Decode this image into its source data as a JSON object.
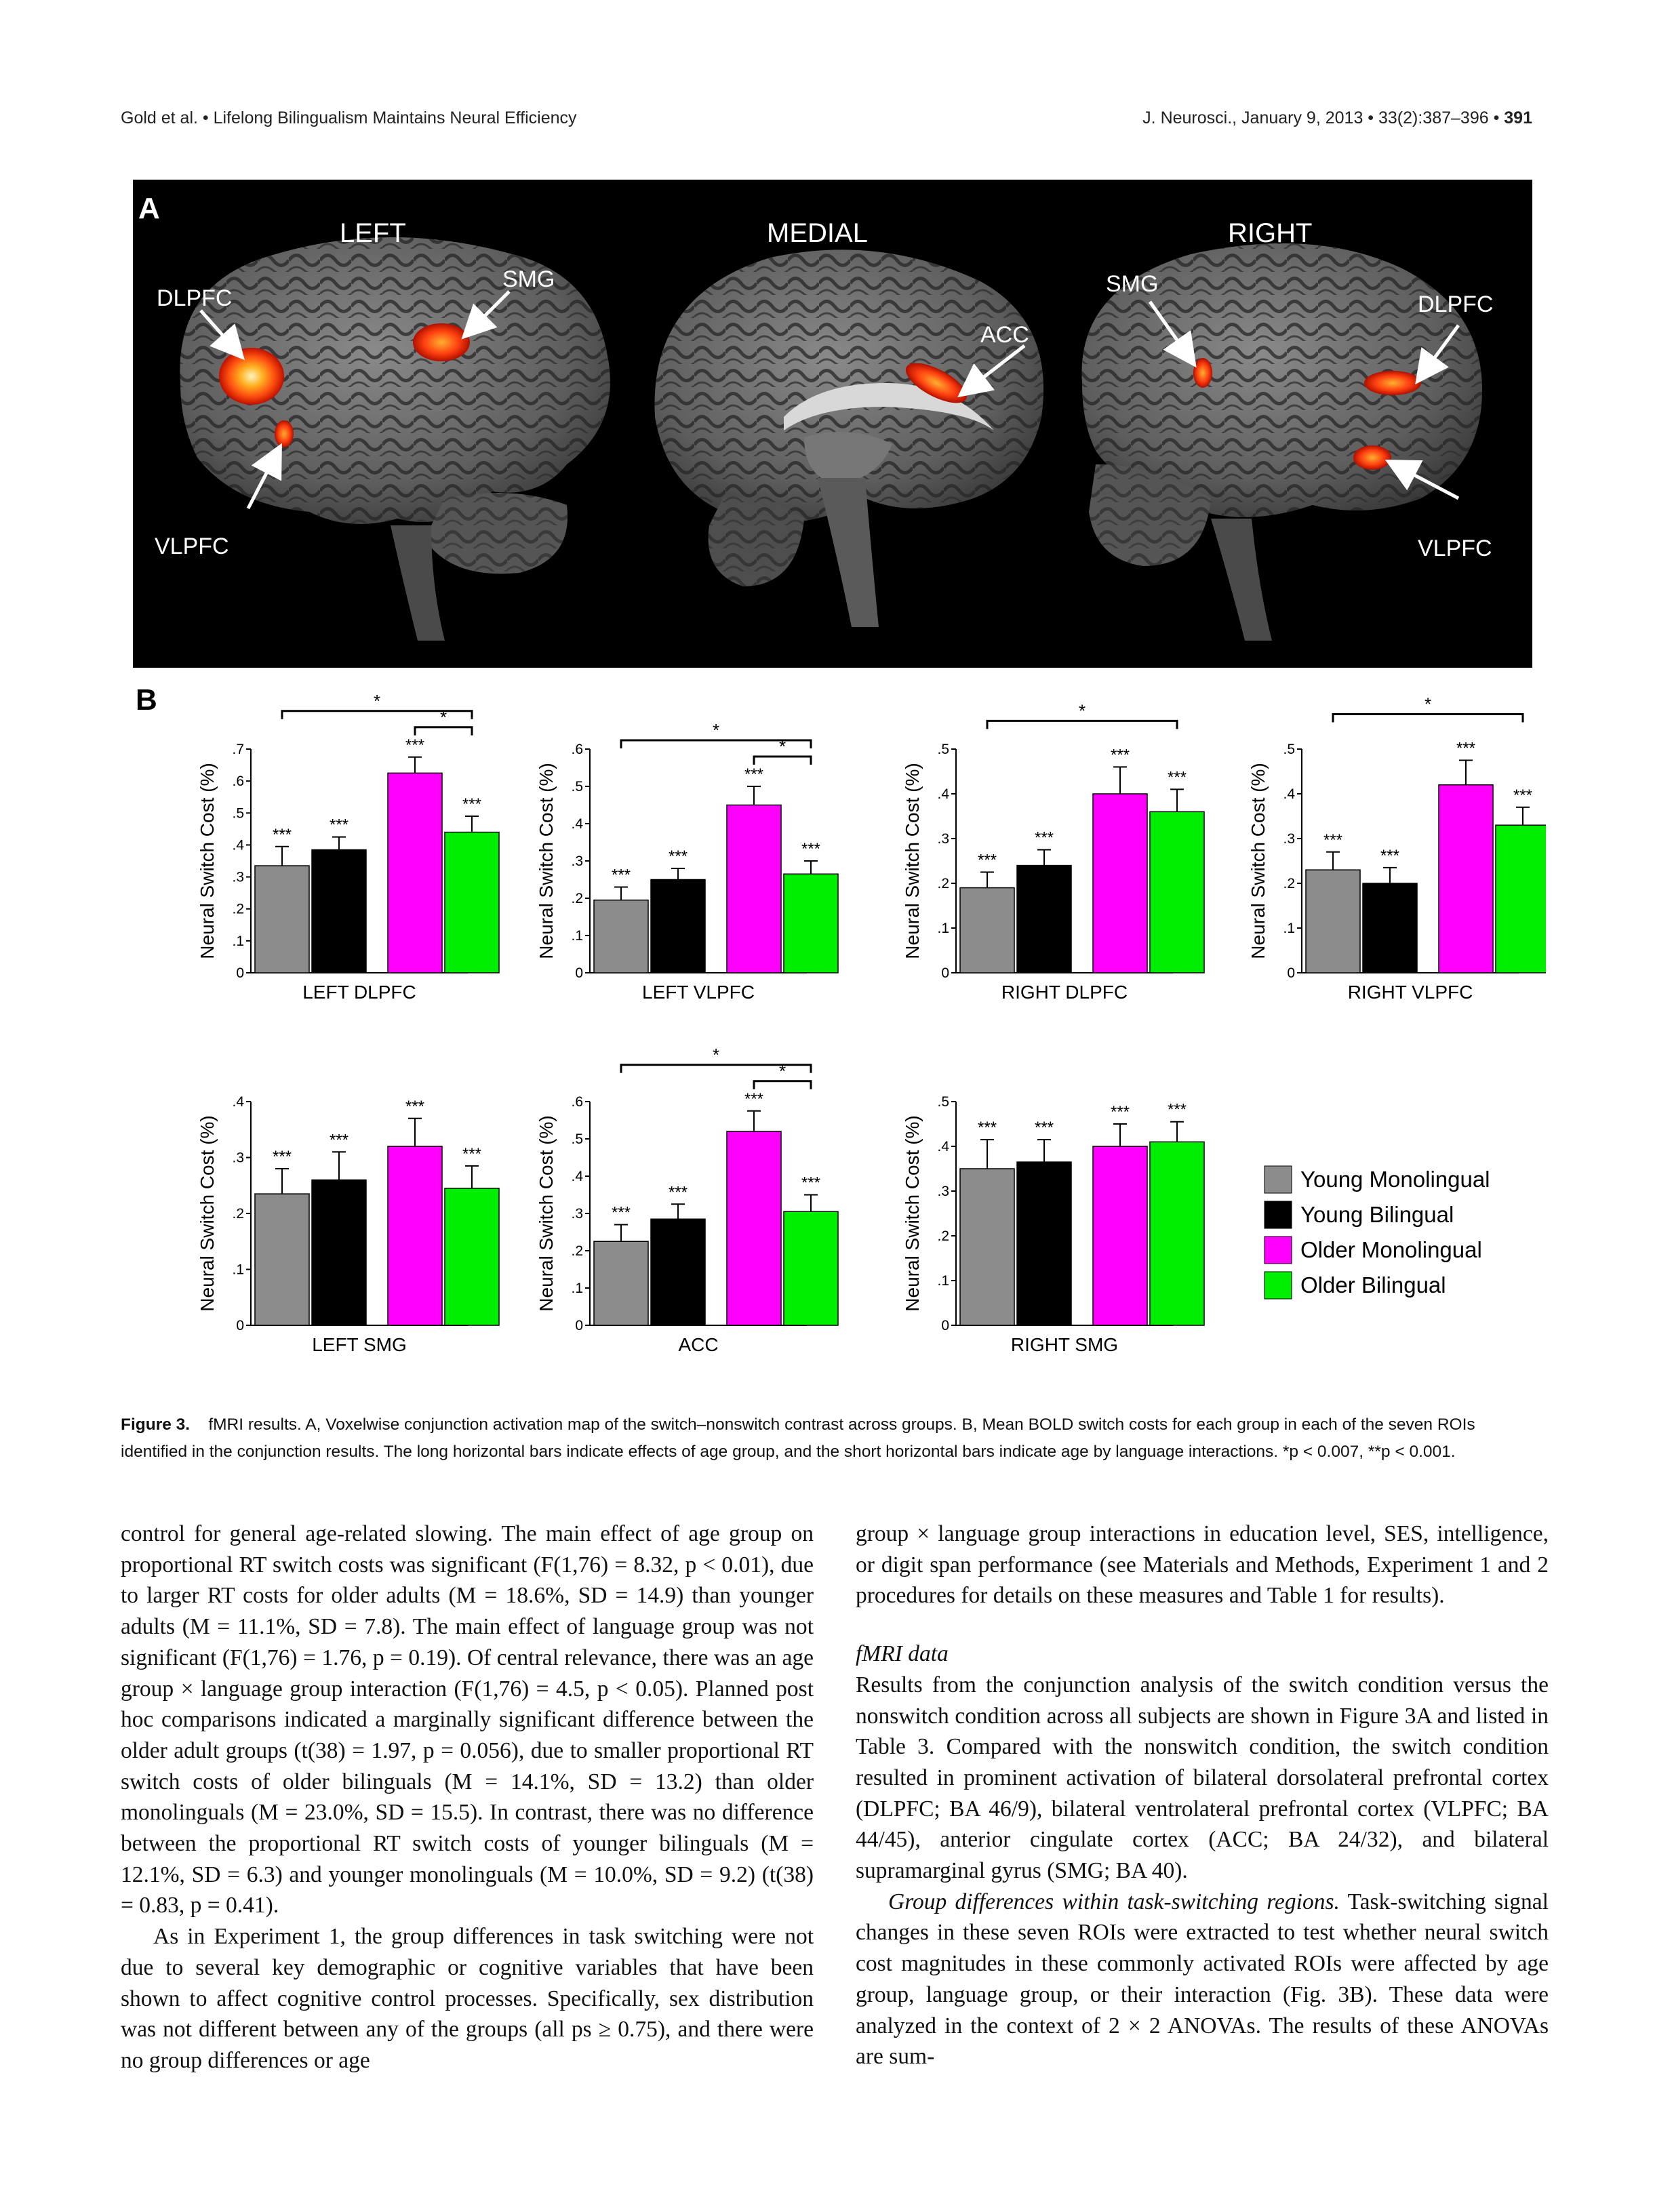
{
  "header": {
    "left": "Gold et al. • Lifelong Bilingualism Maintains Neural Efficiency",
    "right": "J. Neurosci., January 9, 2013 • 33(2):387–396 •",
    "page_number": "391"
  },
  "panel_a": {
    "panel_label": "A",
    "views": [
      "LEFT",
      "MEDIAL",
      "RIGHT"
    ],
    "region_labels": {
      "left_dlpfc": "DLPFC",
      "left_smg": "SMG",
      "left_vlpfc": "VLPFC",
      "medial_acc": "ACC",
      "right_smg": "SMG",
      "right_dlpfc": "DLPFC",
      "right_vlpfc": "VLPFC"
    },
    "colors": {
      "activation_core": "#ffe9a0",
      "activation_mid": "#ff7a10",
      "activation_edge": "#d41808",
      "background": "#000000"
    }
  },
  "chart_data": [
    {
      "type": "bar",
      "title": "LEFT DLPFC",
      "ylabel": "Neural Switch Cost (%)",
      "ylim": [
        0,
        0.7
      ],
      "yticks": [
        0,
        0.1,
        0.2,
        0.3,
        0.4,
        0.5,
        0.6,
        0.7
      ],
      "ytick_labels": [
        "0",
        ".1",
        ".2",
        ".3",
        ".4",
        ".5",
        ".6",
        ".7"
      ],
      "categories": [
        "Young Monolingual",
        "Young Bilingual",
        "Older Monolingual",
        "Older Bilingual"
      ],
      "values": [
        0.335,
        0.385,
        0.625,
        0.44
      ],
      "errors": [
        0.06,
        0.04,
        0.05,
        0.05
      ],
      "labels": [
        "***",
        "***",
        "***",
        "***"
      ],
      "brackets": [
        {
          "from": 0,
          "to": 3,
          "label": "*",
          "level": 1
        },
        {
          "from": 2,
          "to": 3,
          "label": "*",
          "level": 2
        }
      ]
    },
    {
      "type": "bar",
      "title": "LEFT VLPFC",
      "ylabel": "Neural Switch Cost (%)",
      "ylim": [
        0,
        0.6
      ],
      "yticks": [
        0,
        0.1,
        0.2,
        0.3,
        0.4,
        0.5,
        0.6
      ],
      "ytick_labels": [
        "0",
        ".1",
        ".2",
        ".3",
        ".4",
        ".5",
        ".6"
      ],
      "categories": [
        "Young Monolingual",
        "Young Bilingual",
        "Older Monolingual",
        "Older Bilingual"
      ],
      "values": [
        0.195,
        0.25,
        0.45,
        0.265
      ],
      "errors": [
        0.035,
        0.03,
        0.05,
        0.035
      ],
      "labels": [
        "***",
        "***",
        "***",
        "***"
      ],
      "brackets": [
        {
          "from": 0,
          "to": 3,
          "label": "*",
          "level": 1
        },
        {
          "from": 2,
          "to": 3,
          "label": "*",
          "level": 2
        }
      ]
    },
    {
      "type": "bar",
      "title": "RIGHT DLPFC",
      "ylabel": "Neural Switch Cost (%)",
      "ylim": [
        0,
        0.5
      ],
      "yticks": [
        0,
        0.1,
        0.2,
        0.3,
        0.4,
        0.5
      ],
      "ytick_labels": [
        "0",
        ".1",
        ".2",
        ".3",
        ".4",
        ".5"
      ],
      "categories": [
        "Young Monolingual",
        "Young Bilingual",
        "Older Monolingual",
        "Older Bilingual"
      ],
      "values": [
        0.19,
        0.24,
        0.4,
        0.36
      ],
      "errors": [
        0.035,
        0.035,
        0.06,
        0.05
      ],
      "labels": [
        "***",
        "***",
        "***",
        "***"
      ],
      "brackets": [
        {
          "from": 0,
          "to": 3,
          "label": "*",
          "level": 1
        }
      ]
    },
    {
      "type": "bar",
      "title": "RIGHT VLPFC",
      "ylabel": "Neural Switch Cost (%)",
      "ylim": [
        0,
        0.5
      ],
      "yticks": [
        0,
        0.1,
        0.2,
        0.3,
        0.4,
        0.5
      ],
      "ytick_labels": [
        "0",
        ".1",
        ".2",
        ".3",
        ".4",
        ".5"
      ],
      "categories": [
        "Young Monolingual",
        "Young Bilingual",
        "Older Monolingual",
        "Older Bilingual"
      ],
      "values": [
        0.23,
        0.2,
        0.42,
        0.33
      ],
      "errors": [
        0.04,
        0.035,
        0.055,
        0.04
      ],
      "labels": [
        "***",
        "***",
        "***",
        "***"
      ],
      "brackets": [
        {
          "from": 0,
          "to": 3,
          "label": "*",
          "level": 1
        }
      ]
    },
    {
      "type": "bar",
      "title": "LEFT SMG",
      "ylabel": "Neural Switch Cost (%)",
      "ylim": [
        0,
        0.4
      ],
      "yticks": [
        0,
        0.1,
        0.2,
        0.3,
        0.4
      ],
      "ytick_labels": [
        "0",
        ".1",
        ".2",
        ".3",
        ".4"
      ],
      "categories": [
        "Young Monolingual",
        "Young Bilingual",
        "Older Monolingual",
        "Older Bilingual"
      ],
      "values": [
        0.235,
        0.26,
        0.32,
        0.245
      ],
      "errors": [
        0.045,
        0.05,
        0.05,
        0.04
      ],
      "labels": [
        "***",
        "***",
        "***",
        "***"
      ],
      "brackets": []
    },
    {
      "type": "bar",
      "title": "ACC",
      "ylabel": "Neural Switch Cost (%)",
      "ylim": [
        0,
        0.6
      ],
      "yticks": [
        0,
        0.1,
        0.2,
        0.3,
        0.4,
        0.5,
        0.6
      ],
      "ytick_labels": [
        "0",
        ".1",
        ".2",
        ".3",
        ".4",
        ".5",
        ".6"
      ],
      "categories": [
        "Young Monolingual",
        "Young Bilingual",
        "Older Monolingual",
        "Older Bilingual"
      ],
      "values": [
        0.225,
        0.285,
        0.52,
        0.305
      ],
      "errors": [
        0.045,
        0.04,
        0.055,
        0.045
      ],
      "labels": [
        "***",
        "***",
        "***",
        "***"
      ],
      "brackets": [
        {
          "from": 0,
          "to": 3,
          "label": "*",
          "level": 1
        },
        {
          "from": 2,
          "to": 3,
          "label": "*",
          "level": 2
        }
      ]
    },
    {
      "type": "bar",
      "title": "RIGHT SMG",
      "ylabel": "Neural Switch Cost (%)",
      "ylim": [
        0,
        0.5
      ],
      "yticks": [
        0,
        0.1,
        0.2,
        0.3,
        0.4,
        0.5
      ],
      "ytick_labels": [
        "0",
        ".1",
        ".2",
        ".3",
        ".4",
        ".5"
      ],
      "categories": [
        "Young Monolingual",
        "Young Bilingual",
        "Older Monolingual",
        "Older Bilingual"
      ],
      "values": [
        0.35,
        0.365,
        0.4,
        0.41
      ],
      "errors": [
        0.065,
        0.05,
        0.05,
        0.045
      ],
      "labels": [
        "***",
        "***",
        "***",
        "***"
      ],
      "brackets": []
    }
  ],
  "panel_b": {
    "panel_label": "B",
    "legend": [
      {
        "label": "Young Monolingual",
        "color": "#8c8c8c"
      },
      {
        "label": "Young Bilingual",
        "color": "#000000"
      },
      {
        "label": "Older Monolingual",
        "color": "#ff00ff"
      },
      {
        "label": "Older Bilingual",
        "color": "#00ee00"
      }
    ]
  },
  "caption": {
    "label": "Figure 3.",
    "text": "fMRI results. A, Voxelwise conjunction activation map of the switch–nonswitch contrast across groups. B, Mean BOLD switch costs for each group in each of the seven ROIs identified in the conjunction results. The long horizontal bars indicate effects of age group, and the short horizontal bars indicate age by language interactions. *p < 0.007, **p < 0.001."
  },
  "body": {
    "left_column": [
      "control for general age-related slowing. The main effect of age group on proportional RT switch costs was significant (F(1,76) = 8.32, p < 0.01), due to larger RT costs for older adults (M = 18.6%, SD = 14.9) than younger adults (M = 11.1%, SD = 7.8). The main effect of language group was not significant (F(1,76) = 1.76, p = 0.19). Of central relevance, there was an age group × language group interaction (F(1,76) = 4.5, p < 0.05). Planned post hoc comparisons indicated a marginally significant difference between the older adult groups (t(38) = 1.97, p = 0.056), due to smaller proportional RT switch costs of older bilinguals (M = 14.1%, SD = 13.2) than older monolinguals (M = 23.0%, SD = 15.5). In contrast, there was no difference between the proportional RT switch costs of younger bilinguals (M = 12.1%, SD = 6.3) and younger monolinguals (M = 10.0%, SD = 9.2) (t(38) = 0.83, p = 0.41).",
      "As in Experiment 1, the group differences in task switching were not due to several key demographic or cognitive variables that have been shown to affect cognitive control processes. Specifically, sex distribution was not different between any of the groups (all ps ≥ 0.75), and there were no group differences or age"
    ],
    "right_column_p1": "group × language group interactions in education level, SES, intelligence, or digit span performance (see Materials and Methods, Experiment 1 and 2 procedures for details on these measures and Table 1 for results).",
    "right_heading": "fMRI data",
    "right_column_p2": "Results from the conjunction analysis of the switch condition versus the nonswitch condition across all subjects are shown in Figure 3A and listed in Table 3. Compared with the nonswitch condition, the switch condition resulted in prominent activation of bilateral dorsolateral prefrontal cortex (DLPFC; BA 46/9), bilateral ventrolateral prefrontal cortex (VLPFC; BA 44/45), anterior cingulate cortex (ACC; BA 24/32), and bilateral supramarginal gyrus (SMG; BA 40).",
    "right_p3_lead": "Group differences within task-switching regions.",
    "right_column_p3": "Task-switching signal changes in these seven ROIs were extracted to test whether neural switch cost magnitudes in these commonly activated ROIs were affected by age group, language group, or their interaction (Fig. 3B). These data were analyzed in the context of 2 × 2 ANOVAs. The results of these ANOVAs are sum-"
  }
}
